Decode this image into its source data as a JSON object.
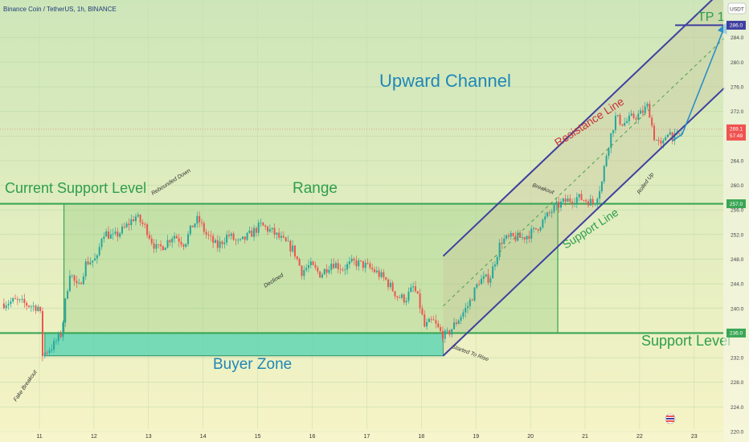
{
  "header": {
    "symbol_title": "Binance Coin / TetherUS, 1h, BINANCE",
    "currency_badge": "USDT"
  },
  "annotations": {
    "upward_channel": "Upward Channel",
    "range": "Range",
    "current_support_level": "Current Support Level",
    "buyer_zone": "Buyer Zone",
    "support_level": "Support Level",
    "resistance_line": "Resistance Line",
    "support_line": "Support Line",
    "tp1": "TP 1",
    "rebounded_down": "Rebounded Down",
    "declined": "Declined",
    "breakout": "Breakout",
    "rolled_up": "Rolled Up",
    "started_to_rise": "Started To Rise",
    "fake_breakout": "Fake Breakout"
  },
  "price_labels": {
    "tp": "286.0",
    "current_price": "269.1",
    "countdown": "57:49",
    "level_upper": "257.0",
    "level_lower": "236.0"
  },
  "colors": {
    "bull": "#26a69a",
    "bear": "#ef5350",
    "level_line": "#3aa655",
    "channel_line": "#3f3fa0",
    "tp_arrow": "#2a8fc8",
    "title_blue": "#1f87b8",
    "resistance_red": "#c7343a",
    "buyer_zone": "#4fd1b2"
  },
  "chart_data": {
    "type": "candlestick",
    "title": "Binance Coin / TetherUS, 1h, BINANCE",
    "x_ticks": [
      "11",
      "12",
      "13",
      "14",
      "15",
      "16",
      "17",
      "18",
      "19",
      "20",
      "21",
      "22",
      "23"
    ],
    "y_ticks": [
      220,
      224,
      228,
      232,
      236,
      240,
      244,
      248,
      252,
      256,
      260,
      264,
      268,
      272,
      276,
      280,
      284
    ],
    "ylim": [
      218.3,
      290.1
    ],
    "levels": {
      "current_support": 257.0,
      "support": 236.0,
      "tp": 286.0,
      "current_price": 269.1
    },
    "buyer_zone": [
      232.3,
      236.0
    ],
    "path": [
      [
        10.35,
        240.8
      ],
      [
        10.6,
        241.2
      ],
      [
        10.9,
        240.4
      ],
      [
        11.05,
        240.2
      ],
      [
        11.1,
        232.5
      ],
      [
        11.3,
        234.0
      ],
      [
        11.45,
        236.0
      ],
      [
        11.5,
        240.0
      ],
      [
        11.6,
        246.0
      ],
      [
        11.75,
        243.0
      ],
      [
        11.9,
        247.5
      ],
      [
        12.1,
        248.0
      ],
      [
        12.2,
        252.5
      ],
      [
        12.4,
        251.5
      ],
      [
        12.6,
        253.0
      ],
      [
        12.8,
        255.0
      ],
      [
        13.0,
        253.0
      ],
      [
        13.1,
        251.0
      ],
      [
        13.2,
        249.5
      ],
      [
        13.35,
        250.5
      ],
      [
        13.5,
        252.0
      ],
      [
        13.7,
        250.5
      ],
      [
        13.85,
        253.5
      ],
      [
        13.95,
        254.5
      ],
      [
        14.1,
        252.0
      ],
      [
        14.3,
        250.0
      ],
      [
        14.5,
        252.0
      ],
      [
        14.7,
        250.5
      ],
      [
        14.9,
        252.0
      ],
      [
        15.1,
        253.5
      ],
      [
        15.3,
        252.5
      ],
      [
        15.5,
        251.0
      ],
      [
        15.7,
        249.5
      ],
      [
        15.85,
        246.0
      ],
      [
        16.0,
        247.0
      ],
      [
        16.2,
        245.5
      ],
      [
        16.4,
        247.5
      ],
      [
        16.6,
        246.5
      ],
      [
        16.8,
        247.5
      ],
      [
        17.0,
        247.0
      ],
      [
        17.2,
        246.0
      ],
      [
        17.4,
        244.5
      ],
      [
        17.6,
        242.0
      ],
      [
        17.75,
        241.5
      ],
      [
        17.9,
        243.5
      ],
      [
        18.0,
        241.0
      ],
      [
        18.1,
        237.0
      ],
      [
        18.25,
        238.0
      ],
      [
        18.4,
        236.0
      ],
      [
        18.5,
        235.5
      ],
      [
        18.7,
        238.0
      ],
      [
        18.9,
        240.5
      ],
      [
        19.1,
        244.5
      ],
      [
        19.3,
        245.0
      ],
      [
        19.5,
        251.0
      ],
      [
        19.7,
        251.5
      ],
      [
        19.9,
        251.5
      ],
      [
        20.1,
        252.5
      ],
      [
        20.3,
        254.5
      ],
      [
        20.5,
        256.5
      ],
      [
        20.7,
        257.5
      ],
      [
        20.9,
        258.0
      ],
      [
        21.1,
        257.5
      ],
      [
        21.2,
        257.0
      ],
      [
        21.35,
        260.5
      ],
      [
        21.45,
        266.0
      ],
      [
        21.6,
        271.0
      ],
      [
        21.75,
        270.0
      ],
      [
        21.9,
        271.0
      ],
      [
        22.05,
        271.5
      ],
      [
        22.2,
        273.0
      ],
      [
        22.3,
        268.0
      ],
      [
        22.45,
        266.0
      ],
      [
        22.55,
        269.0
      ],
      [
        22.7,
        267.5
      ],
      [
        22.8,
        268.5
      ]
    ]
  }
}
